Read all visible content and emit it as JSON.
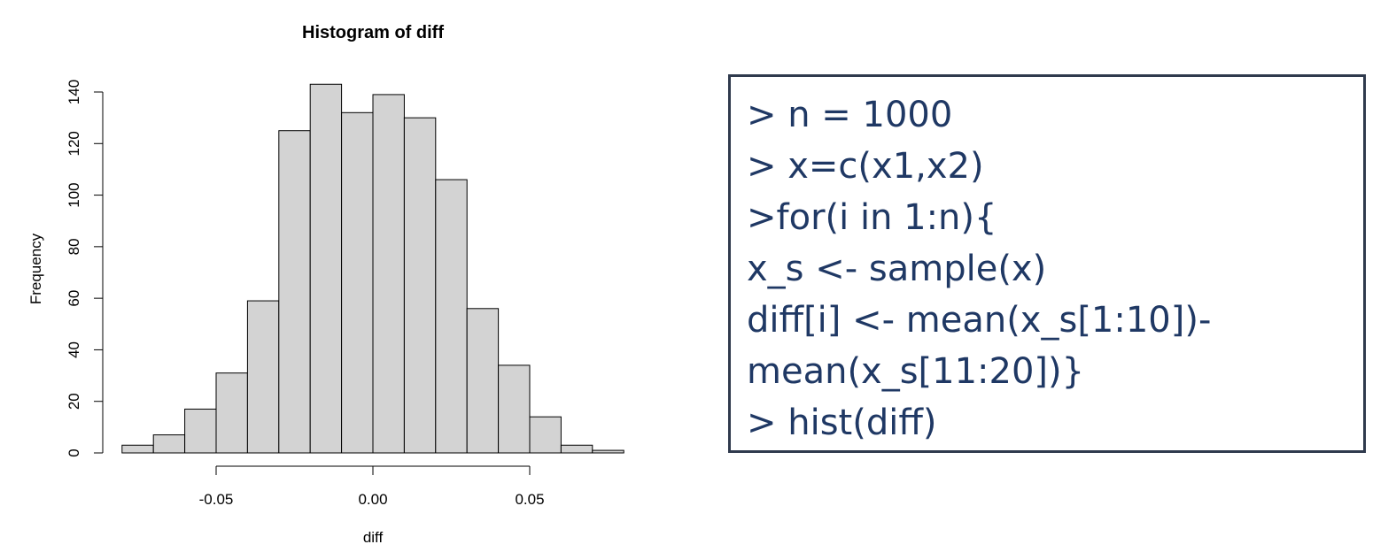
{
  "chart_data": {
    "type": "bar",
    "title": "Histogram of diff",
    "xlabel": "diff",
    "ylabel": "Frequency",
    "bin_edges": [
      -0.08,
      -0.07,
      -0.06,
      -0.05,
      -0.04,
      -0.03,
      -0.02,
      -0.01,
      0.0,
      0.01,
      0.02,
      0.03,
      0.04,
      0.05,
      0.06,
      0.07,
      0.08
    ],
    "values": [
      3,
      7,
      17,
      31,
      59,
      125,
      143,
      132,
      139,
      130,
      106,
      56,
      34,
      14,
      3,
      1
    ],
    "xlim": [
      -0.08,
      0.08
    ],
    "ylim": [
      0,
      145
    ],
    "x_ticks": [
      -0.05,
      0.0,
      0.05
    ],
    "x_tick_labels": [
      "-0.05",
      "0.00",
      "0.05"
    ],
    "y_ticks": [
      0,
      20,
      40,
      60,
      80,
      100,
      120,
      140
    ],
    "y_tick_labels": [
      "0",
      "20",
      "40",
      "60",
      "80",
      "100",
      "120",
      "140"
    ],
    "grid": false,
    "bar_fill": "#d3d3d3",
    "bar_stroke": "#000000"
  },
  "code": {
    "lines": [
      "> n = 1000",
      "> x=c(x1,x2)",
      ">for(i in 1:n){",
      "x_s <- sample(x)",
      "diff[i] <- mean(x_s[1:10])-",
      "mean(x_s[11:20])}",
      "> hist(diff)"
    ],
    "text_color": "#1f3864",
    "border_color": "#2f3a4d"
  }
}
